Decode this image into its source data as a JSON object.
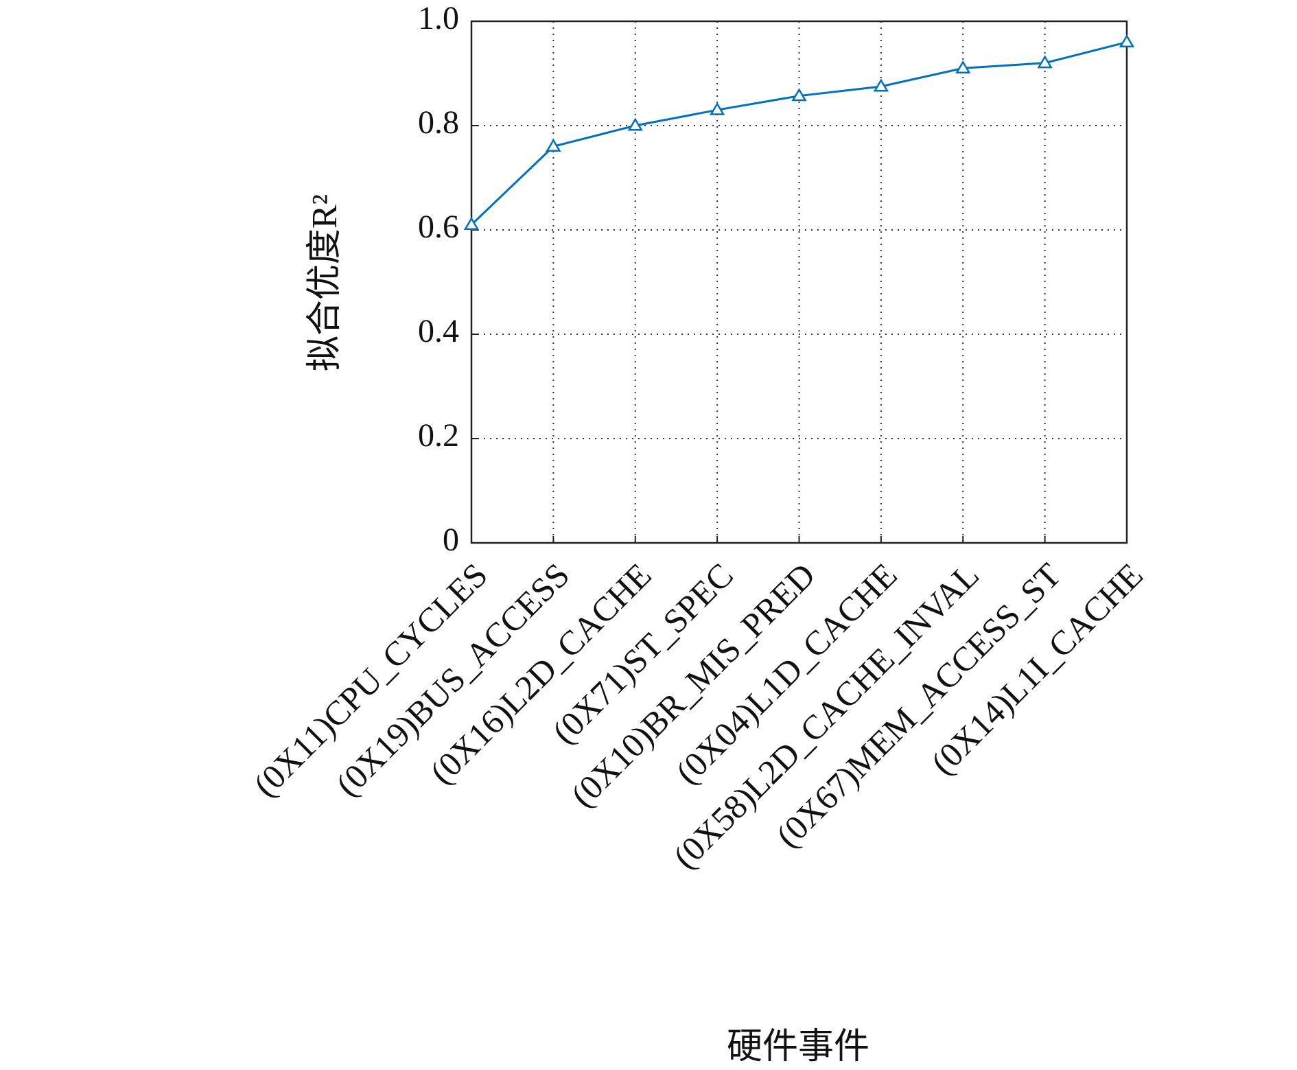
{
  "chart_data": {
    "type": "line",
    "x_label": "硬件事件",
    "y_label": "拟合优度R²",
    "categories": [
      "(0X11)CPU_CYCLES",
      "(0X19)BUS_ACCESS",
      "(0X16)L2D_CACHE",
      "(0X71)ST_SPEC",
      "(0X10)BR_MIS_PRED",
      "(0X04)L1D_CACHE",
      "(0X58)L2D_CACHE_INVAL",
      "(0X67)MEM_ACCESS_ST",
      "(0X14)L1I_CACHE"
    ],
    "series": [
      {
        "color": "#0072bd",
        "marker": "triangle",
        "values": [
          0.61,
          0.76,
          0.8,
          0.83,
          0.857,
          0.875,
          0.91,
          0.92,
          0.96
        ]
      }
    ],
    "ylim": [
      0,
      1
    ],
    "yticks": [
      0,
      0.2,
      0.4,
      0.6,
      0.8,
      {
        "value": 1,
        "label": "1.0"
      }
    ],
    "grid": true
  }
}
